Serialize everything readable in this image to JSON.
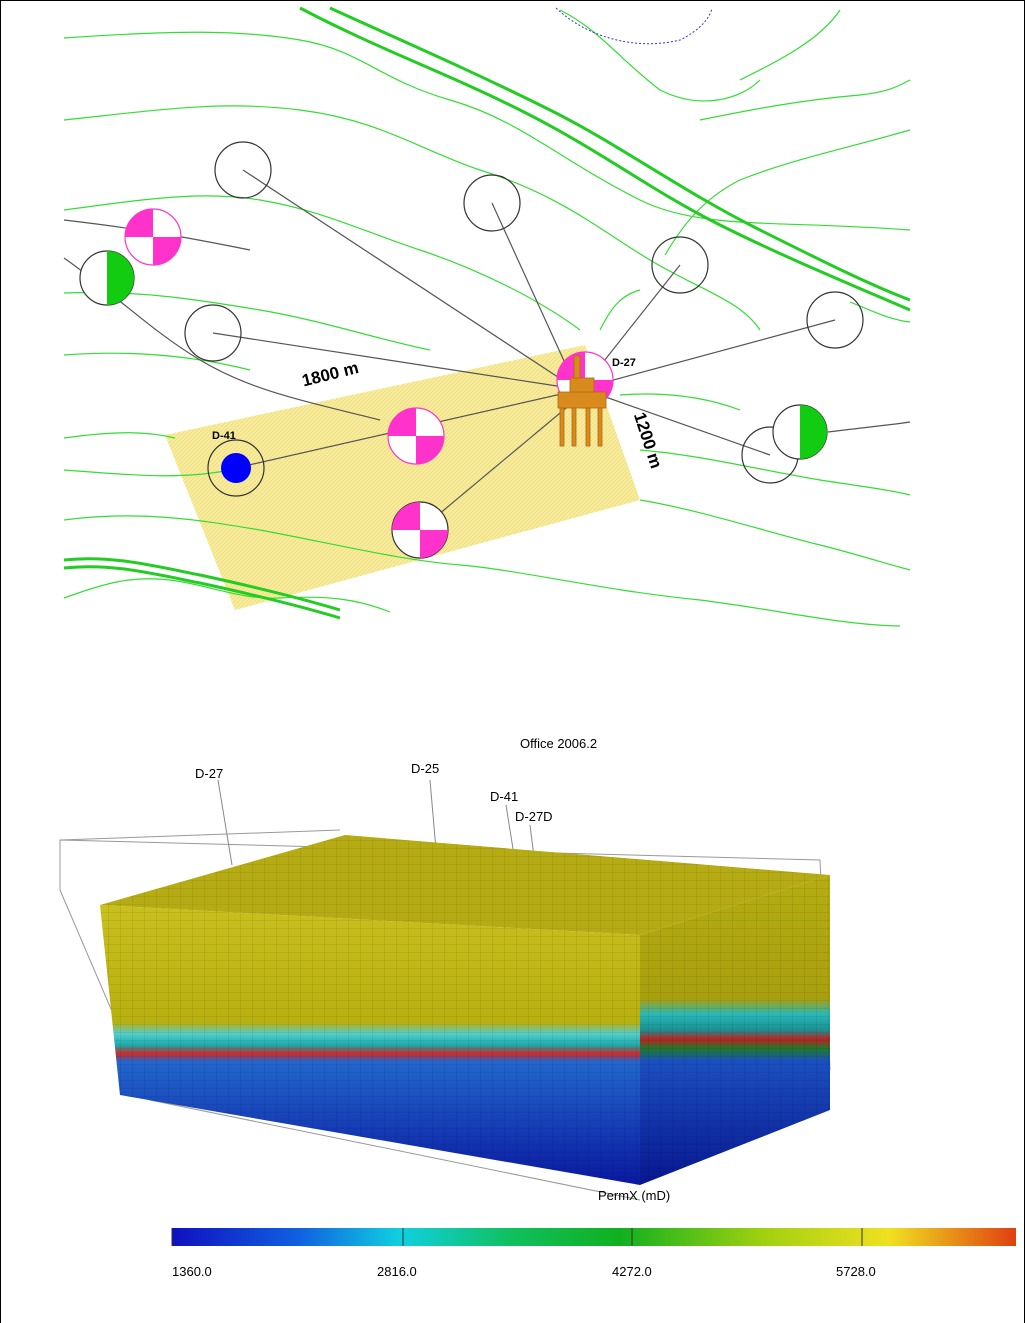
{
  "map": {
    "wells": {
      "d27": "D-27",
      "d41": "D-41"
    },
    "distances": {
      "horizontal": "1800 m",
      "vertical": "1200 m"
    }
  },
  "model": {
    "title": "Office 2006.2",
    "wells": {
      "d27": "D-27",
      "d25": "D-25",
      "d41": "D-41",
      "d27d": "D-27D"
    },
    "property_label": "PermX (mD)",
    "colorbar": {
      "ticks": [
        "1360.0",
        "2816.0",
        "4272.0",
        "5728.0"
      ],
      "min": 1360.0,
      "max": 7184.0
    }
  },
  "colors": {
    "contour": "#33dd33",
    "fault": "#22cc22",
    "mapped_area": "#fbf3a6",
    "well_magenta": "#ff33cc",
    "well_green": "#11cc11",
    "injector": "#0000ff",
    "platform": "#d98a1c"
  }
}
